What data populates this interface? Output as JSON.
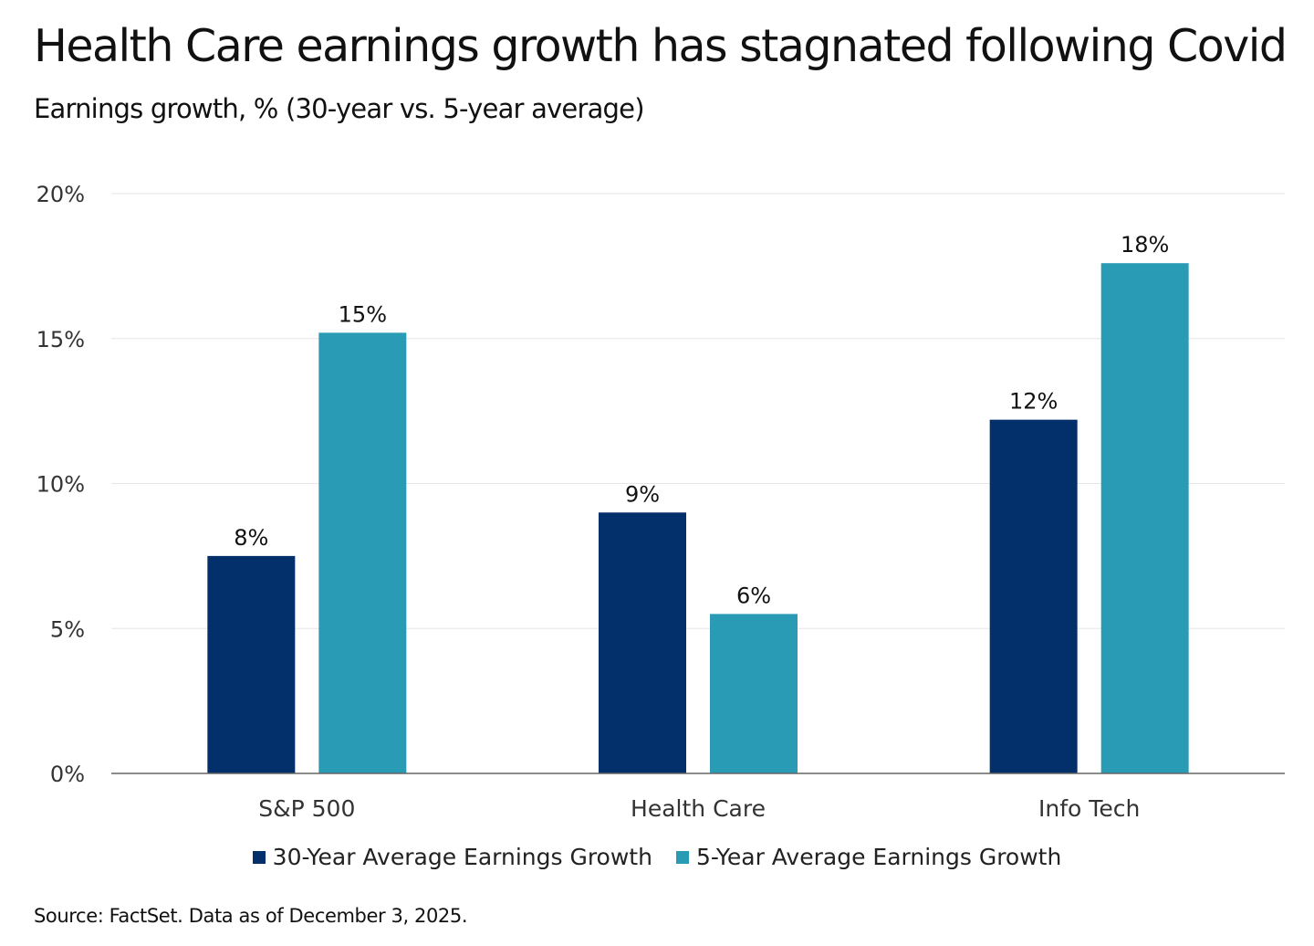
{
  "chart_data": {
    "type": "bar",
    "title": "Health Care earnings growth has stagnated following Covid",
    "subtitle": "Earnings growth, % (30-year vs. 5-year average)",
    "categories": [
      "S&P 500",
      "Health Care",
      "Info Tech"
    ],
    "series": [
      {
        "name": "30-Year Average Earnings Growth",
        "values": [
          7.5,
          9.0,
          12.2
        ],
        "labels": [
          "8%",
          "9%",
          "12%"
        ],
        "color": "#03306a"
      },
      {
        "name": "5-Year Average Earnings Growth",
        "values": [
          15.2,
          5.5,
          17.6
        ],
        "labels": [
          "15%",
          "6%",
          "18%"
        ],
        "color": "#2a9bb5"
      }
    ],
    "ylim": [
      0,
      20
    ],
    "yticks": [
      0,
      5,
      10,
      15,
      20
    ],
    "ytick_labels": [
      "0%",
      "5%",
      "10%",
      "15%",
      "20%"
    ],
    "grid": true,
    "legend_position": "bottom",
    "source": "Source: FactSet. Data as of December 3, 2025."
  }
}
